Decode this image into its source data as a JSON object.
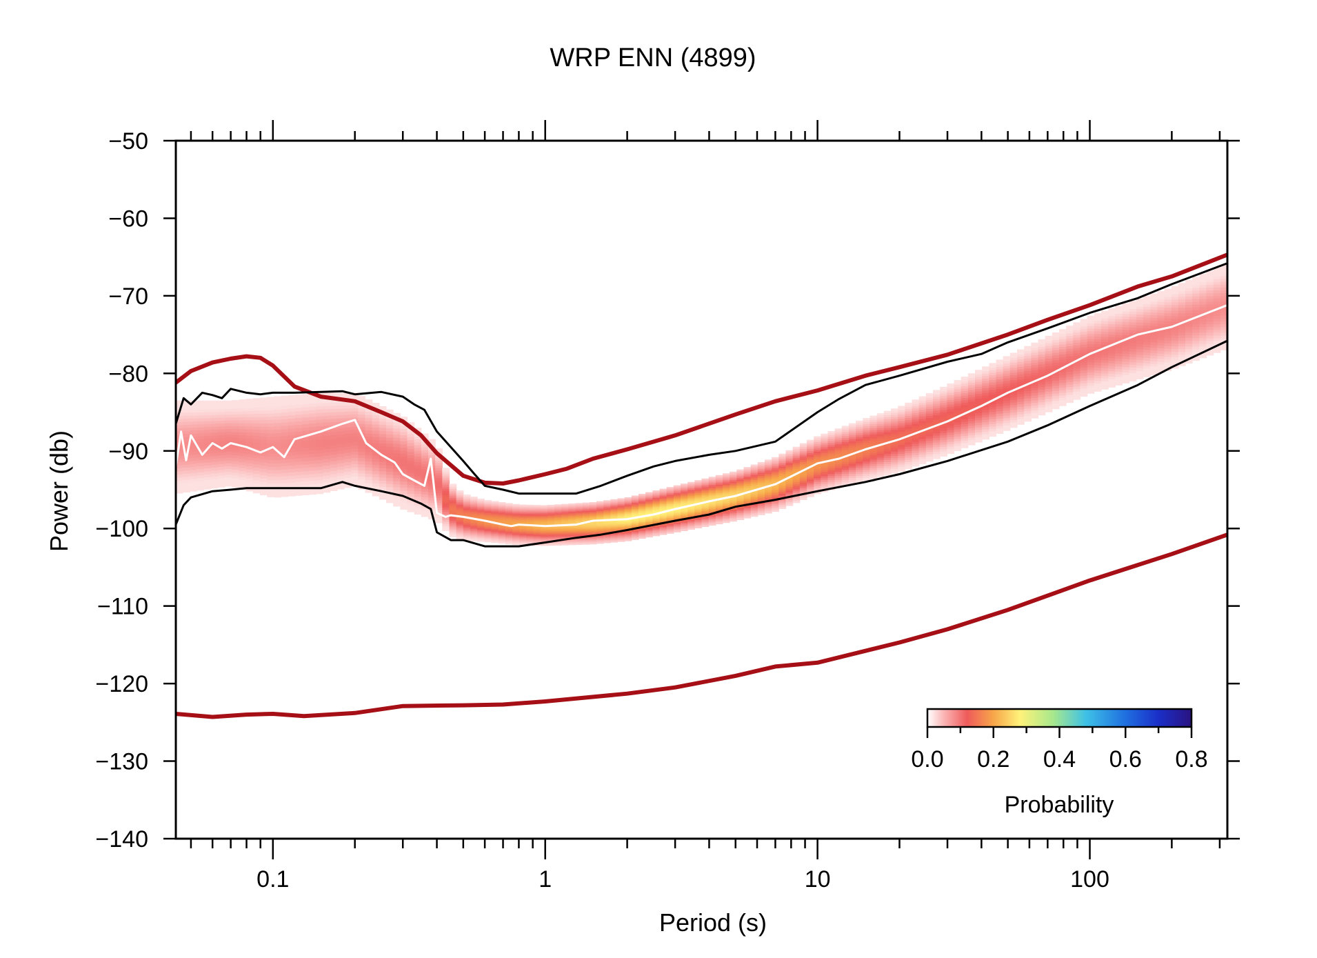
{
  "chart_data": {
    "type": "line",
    "title": "WRP ENN (4899)",
    "xlabel": "Period (s)",
    "ylabel": "Power (db)",
    "x_scale": "log",
    "xlim": [
      0.044,
      320
    ],
    "ylim": [
      -140,
      -50
    ],
    "x_ticks": [
      {
        "value": 0.1,
        "label": "0.1"
      },
      {
        "value": 1,
        "label": "1"
      },
      {
        "value": 10,
        "label": "10"
      },
      {
        "value": 100,
        "label": "100"
      }
    ],
    "y_ticks": [
      {
        "value": -50,
        "label": "−50"
      },
      {
        "value": -60,
        "label": "−60"
      },
      {
        "value": -70,
        "label": "−70"
      },
      {
        "value": -80,
        "label": "−80"
      },
      {
        "value": -90,
        "label": "−90"
      },
      {
        "value": -100,
        "label": "−100"
      },
      {
        "value": -110,
        "label": "−110"
      },
      {
        "value": -120,
        "label": "−120"
      },
      {
        "value": -130,
        "label": "−130"
      },
      {
        "value": -140,
        "label": "−140"
      }
    ],
    "series": [
      {
        "role": "nhnm",
        "color": "#a50f15",
        "x": [
          0.044,
          0.05,
          0.06,
          0.07,
          0.08,
          0.09,
          0.1,
          0.12,
          0.15,
          0.2,
          0.25,
          0.3,
          0.35,
          0.4,
          0.5,
          0.6,
          0.7,
          0.8,
          1.0,
          1.2,
          1.5,
          2,
          3,
          5,
          7,
          10,
          15,
          20,
          30,
          50,
          70,
          100,
          150,
          200,
          320
        ],
        "y": [
          -81.2,
          -79.7,
          -78.6,
          -78.1,
          -77.8,
          -78.0,
          -79.0,
          -81.7,
          -83.0,
          -83.6,
          -85.0,
          -86.2,
          -88.0,
          -90.3,
          -93.2,
          -94.1,
          -94.2,
          -93.8,
          -93.0,
          -92.3,
          -91.0,
          -89.8,
          -88.0,
          -85.3,
          -83.6,
          -82.2,
          -80.3,
          -79.2,
          -77.6,
          -75.0,
          -73.1,
          -71.2,
          -68.8,
          -67.5,
          -64.7
        ]
      },
      {
        "role": "nlnm",
        "color": "#a50f15",
        "x": [
          0.044,
          0.06,
          0.08,
          0.1,
          0.13,
          0.2,
          0.3,
          0.5,
          0.7,
          1.0,
          2,
          3,
          5,
          7,
          10,
          20,
          30,
          50,
          100,
          200,
          320
        ],
        "y": [
          -123.9,
          -124.3,
          -124.0,
          -123.9,
          -124.2,
          -123.8,
          -122.9,
          -122.8,
          -122.7,
          -122.3,
          -121.3,
          -120.5,
          -119.0,
          -117.8,
          -117.3,
          -114.7,
          -113.0,
          -110.5,
          -106.7,
          -103.3,
          -100.8
        ]
      },
      {
        "role": "percentile-upper",
        "color": "#000000",
        "x": [
          0.044,
          0.047,
          0.05,
          0.055,
          0.06,
          0.065,
          0.07,
          0.08,
          0.09,
          0.1,
          0.12,
          0.15,
          0.18,
          0.2,
          0.25,
          0.3,
          0.33,
          0.36,
          0.4,
          0.45,
          0.5,
          0.55,
          0.6,
          0.7,
          0.8,
          1.0,
          1.3,
          1.6,
          2,
          2.5,
          3,
          4,
          5,
          7,
          10,
          12,
          15,
          20,
          30,
          40,
          50,
          70,
          100,
          150,
          200,
          320
        ],
        "y": [
          -86.5,
          -83.2,
          -84.0,
          -82.5,
          -82.8,
          -83.2,
          -82.0,
          -82.5,
          -82.7,
          -82.5,
          -82.5,
          -82.4,
          -82.3,
          -82.7,
          -82.4,
          -83.0,
          -84.0,
          -84.7,
          -87.5,
          -89.5,
          -91.3,
          -93.0,
          -94.5,
          -95.0,
          -95.5,
          -95.5,
          -95.5,
          -94.5,
          -93.2,
          -92.0,
          -91.3,
          -90.5,
          -90.0,
          -88.8,
          -85.0,
          -83.3,
          -81.5,
          -80.3,
          -78.5,
          -77.5,
          -76.0,
          -74.2,
          -72.2,
          -70.3,
          -68.5,
          -65.8
        ]
      },
      {
        "role": "percentile-lower",
        "color": "#000000",
        "x": [
          0.044,
          0.047,
          0.05,
          0.06,
          0.07,
          0.08,
          0.1,
          0.12,
          0.15,
          0.18,
          0.2,
          0.25,
          0.3,
          0.35,
          0.38,
          0.4,
          0.45,
          0.5,
          0.6,
          0.7,
          0.8,
          1.0,
          1.3,
          1.6,
          2,
          3,
          4,
          5,
          7,
          10,
          15,
          20,
          30,
          50,
          70,
          100,
          150,
          200,
          320
        ],
        "y": [
          -99.5,
          -97.0,
          -96.0,
          -95.2,
          -95.0,
          -94.8,
          -94.8,
          -94.8,
          -94.8,
          -94.0,
          -94.5,
          -95.2,
          -95.8,
          -96.8,
          -97.5,
          -100.5,
          -101.5,
          -101.5,
          -102.3,
          -102.3,
          -102.3,
          -101.8,
          -101.2,
          -100.8,
          -100.2,
          -99.0,
          -98.2,
          -97.2,
          -96.3,
          -95.2,
          -94.0,
          -93.0,
          -91.3,
          -88.8,
          -86.7,
          -84.2,
          -81.5,
          -79.2,
          -75.8
        ]
      },
      {
        "role": "mode",
        "color": "#ffffff",
        "x": [
          0.044,
          0.046,
          0.048,
          0.05,
          0.055,
          0.06,
          0.065,
          0.07,
          0.08,
          0.09,
          0.1,
          0.11,
          0.12,
          0.15,
          0.18,
          0.2,
          0.22,
          0.25,
          0.28,
          0.3,
          0.33,
          0.36,
          0.38,
          0.4,
          0.43,
          0.45,
          0.5,
          0.6,
          0.7,
          0.75,
          0.8,
          1.0,
          1.3,
          1.5,
          2,
          2.5,
          3,
          4,
          5,
          7,
          10,
          12,
          15,
          20,
          30,
          40,
          50,
          70,
          100,
          150,
          200,
          320
        ],
        "y": [
          -92.0,
          -87.5,
          -91.2,
          -88.0,
          -90.5,
          -89.0,
          -89.7,
          -89.0,
          -89.5,
          -90.2,
          -89.5,
          -90.8,
          -88.5,
          -87.5,
          -86.5,
          -86.0,
          -89.0,
          -90.5,
          -91.5,
          -93.0,
          -93.8,
          -94.5,
          -91.0,
          -98.0,
          -98.5,
          -98.3,
          -98.5,
          -99.0,
          -99.5,
          -99.7,
          -99.5,
          -99.7,
          -99.5,
          -99.0,
          -98.8,
          -98.2,
          -97.5,
          -96.5,
          -95.8,
          -94.3,
          -91.6,
          -91.0,
          -89.8,
          -88.5,
          -86.2,
          -84.2,
          -82.5,
          -80.3,
          -77.5,
          -75.0,
          -74.0,
          -71.2
        ]
      }
    ],
    "pdf_band": {
      "x": [
        0.044,
        0.07,
        0.1,
        0.15,
        0.2,
        0.3,
        0.4,
        0.45,
        0.5,
        0.6,
        0.8,
        1.0,
        1.5,
        2,
        3,
        5,
        7,
        10,
        15,
        20,
        30,
        50,
        100,
        200,
        320
      ],
      "center": [
        -89.5,
        -89.0,
        -89.5,
        -89.0,
        -88.5,
        -91.5,
        -94.0,
        -97.5,
        -98.5,
        -99.0,
        -99.5,
        -99.6,
        -99.3,
        -98.8,
        -97.5,
        -95.8,
        -94.3,
        -91.8,
        -89.8,
        -88.5,
        -86.0,
        -82.5,
        -77.6,
        -74.2,
        -71.3
      ],
      "half_width": [
        6.0,
        5.5,
        6.5,
        6.5,
        6.0,
        6.0,
        5.0,
        3.5,
        3.0,
        2.7,
        2.6,
        2.6,
        2.7,
        2.8,
        3.0,
        3.2,
        3.5,
        3.7,
        4.0,
        4.2,
        4.5,
        4.8,
        5.0,
        5.3,
        5.5
      ],
      "peak_probability": [
        0.08,
        0.09,
        0.08,
        0.09,
        0.09,
        0.1,
        0.1,
        0.15,
        0.16,
        0.18,
        0.2,
        0.22,
        0.25,
        0.28,
        0.28,
        0.25,
        0.22,
        0.18,
        0.16,
        0.14,
        0.13,
        0.12,
        0.1,
        0.09,
        0.08
      ]
    },
    "colorbar": {
      "label": "Probability",
      "range": [
        0,
        0.8
      ],
      "ticks": [
        "0.0",
        "0.2",
        "0.4",
        "0.6",
        "0.8"
      ],
      "placement": "bottom-right",
      "stops": [
        {
          "v": 0.0,
          "color": "#ffffff"
        },
        {
          "v": 0.05,
          "color": "#fbb4b4"
        },
        {
          "v": 0.12,
          "color": "#ef5b5b"
        },
        {
          "v": 0.2,
          "color": "#f7a64a"
        },
        {
          "v": 0.28,
          "color": "#fff27a"
        },
        {
          "v": 0.38,
          "color": "#a8e88c"
        },
        {
          "v": 0.48,
          "color": "#3ec1e6"
        },
        {
          "v": 0.6,
          "color": "#1f6fe0"
        },
        {
          "v": 0.7,
          "color": "#1a2fc8"
        },
        {
          "v": 0.8,
          "color": "#2a1280"
        }
      ]
    }
  }
}
